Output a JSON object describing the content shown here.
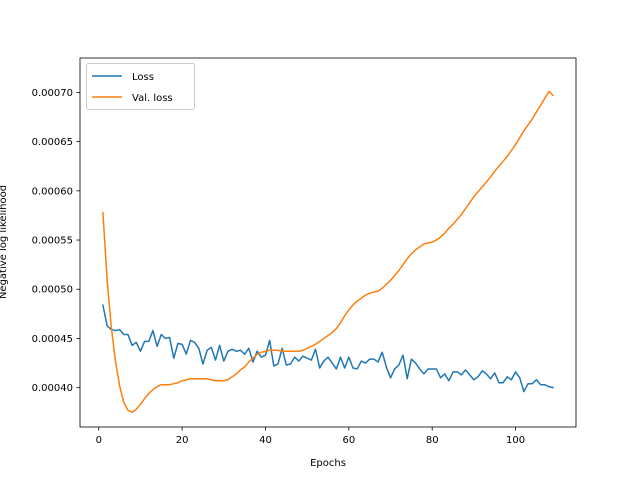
{
  "chart_data": {
    "type": "line",
    "title": "",
    "xlabel": "Epochs",
    "ylabel": "Negative log likelihood",
    "xlim": [
      -4.5,
      114.5
    ],
    "ylim": [
      0.00036,
      0.000735
    ],
    "xticks": [
      0,
      20,
      40,
      60,
      80,
      100
    ],
    "xtick_labels": [
      "0",
      "20",
      "40",
      "60",
      "80",
      "100"
    ],
    "yticks": [
      0.0004,
      0.00045,
      0.0005,
      0.00055,
      0.0006,
      0.00065,
      0.0007
    ],
    "ytick_labels": [
      "0.00040",
      "0.00045",
      "0.00050",
      "0.00055",
      "0.00060",
      "0.00065",
      "0.00070"
    ],
    "grid": false,
    "legend_position": "upper-left",
    "x": [
      1,
      2,
      3,
      4,
      5,
      6,
      7,
      8,
      9,
      10,
      11,
      12,
      13,
      14,
      15,
      16,
      17,
      18,
      19,
      20,
      21,
      22,
      23,
      24,
      25,
      26,
      27,
      28,
      29,
      30,
      31,
      32,
      33,
      34,
      35,
      36,
      37,
      38,
      39,
      40,
      41,
      42,
      43,
      44,
      45,
      46,
      47,
      48,
      49,
      50,
      51,
      52,
      53,
      54,
      55,
      56,
      57,
      58,
      59,
      60,
      61,
      62,
      63,
      64,
      65,
      66,
      67,
      68,
      69,
      70,
      71,
      72,
      73,
      74,
      75,
      76,
      77,
      78,
      79,
      80,
      81,
      82,
      83,
      84,
      85,
      86,
      87,
      88,
      89,
      90,
      91,
      92,
      93,
      94,
      95,
      96,
      97,
      98,
      99,
      100,
      101,
      102,
      103,
      104,
      105,
      106,
      107,
      108,
      109
    ],
    "series": [
      {
        "name": "Loss",
        "color": "#1f77b4",
        "values": [
          0.000484,
          0.000463,
          0.000459,
          0.000458,
          0.000459,
          0.000454,
          0.000454,
          0.000443,
          0.000446,
          0.000437,
          0.000447,
          0.000447,
          0.000458,
          0.000442,
          0.000454,
          0.00045,
          0.000451,
          0.00043,
          0.000445,
          0.000444,
          0.000434,
          0.000448,
          0.000446,
          0.00044,
          0.000424,
          0.000438,
          0.000441,
          0.000428,
          0.000443,
          0.000427,
          0.000437,
          0.000439,
          0.000437,
          0.000438,
          0.000434,
          0.00044,
          0.000426,
          0.000437,
          0.000431,
          0.000433,
          0.000448,
          0.000422,
          0.000424,
          0.00044,
          0.000423,
          0.000424,
          0.000431,
          0.000427,
          0.000432,
          0.00043,
          0.000428,
          0.000439,
          0.00042,
          0.000427,
          0.000431,
          0.000425,
          0.000419,
          0.000431,
          0.00042,
          0.000431,
          0.00042,
          0.000419,
          0.000427,
          0.000425,
          0.000429,
          0.000429,
          0.000426,
          0.000436,
          0.000421,
          0.00041,
          0.000419,
          0.000423,
          0.000433,
          0.000409,
          0.000429,
          0.000425,
          0.000419,
          0.000414,
          0.000419,
          0.000419,
          0.000419,
          0.00041,
          0.000414,
          0.000407,
          0.000416,
          0.000416,
          0.000413,
          0.000418,
          0.000413,
          0.000408,
          0.000411,
          0.000417,
          0.000414,
          0.000409,
          0.000415,
          0.000405,
          0.000405,
          0.000411,
          0.000408,
          0.000416,
          0.00041,
          0.000396,
          0.000404,
          0.000404,
          0.000408,
          0.000403,
          0.000403,
          0.000401,
          0.0004
        ]
      },
      {
        "name": "Val. loss",
        "color": "#ff7f0e",
        "values": [
          0.000578,
          0.00051,
          0.000462,
          0.000427,
          0.000402,
          0.000385,
          0.000377,
          0.000375,
          0.000378,
          0.000383,
          0.000389,
          0.000394,
          0.000398,
          0.000401,
          0.000403,
          0.000403,
          0.000403,
          0.000404,
          0.000405,
          0.000407,
          0.000408,
          0.000409,
          0.000409,
          0.000409,
          0.000409,
          0.000409,
          0.000408,
          0.000407,
          0.000407,
          0.000407,
          0.000408,
          0.000411,
          0.000414,
          0.000418,
          0.000421,
          0.000426,
          0.00043,
          0.000434,
          0.000436,
          0.000437,
          0.000438,
          0.000438,
          0.000438,
          0.000437,
          0.000437,
          0.000437,
          0.000437,
          0.000437,
          0.000438,
          0.00044,
          0.000442,
          0.000444,
          0.000447,
          0.00045,
          0.000453,
          0.000456,
          0.00046,
          0.000466,
          0.000473,
          0.000479,
          0.000484,
          0.000488,
          0.000491,
          0.000494,
          0.000496,
          0.000497,
          0.000498,
          0.000501,
          0.000505,
          0.000509,
          0.000514,
          0.000519,
          0.000525,
          0.000531,
          0.000536,
          0.00054,
          0.000543,
          0.000546,
          0.000547,
          0.000548,
          0.00055,
          0.000553,
          0.000557,
          0.000562,
          0.000566,
          0.000571,
          0.000576,
          0.000582,
          0.000588,
          0.000594,
          0.000599,
          0.000604,
          0.000609,
          0.000614,
          0.00062,
          0.000625,
          0.00063,
          0.000635,
          0.000641,
          0.000647,
          0.000654,
          0.000661,
          0.000667,
          0.000673,
          0.00068,
          0.000687,
          0.000694,
          0.000701,
          0.000697
        ]
      }
    ]
  }
}
